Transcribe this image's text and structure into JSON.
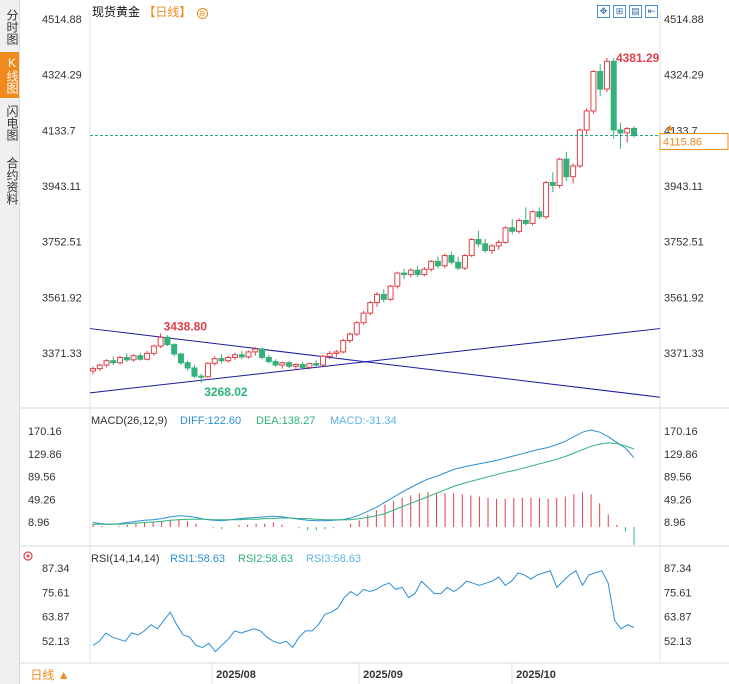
{
  "sidebar": {
    "tabs": [
      {
        "label": "分时图",
        "active": false
      },
      {
        "label": "K线图",
        "active": true
      },
      {
        "label": "闪电图",
        "active": false
      },
      {
        "label": "合约资料",
        "active": false
      }
    ]
  },
  "header": {
    "title": "现货黄金",
    "period": "【日线】",
    "toggle": "⊖"
  },
  "toolbar": {
    "icons": [
      "expand-icon",
      "split-view-icon",
      "chart-mode-icon",
      "exit-icon"
    ]
  },
  "bottom": {
    "period_label": "日线 ▲"
  },
  "colors": {
    "up": "#e0404a",
    "down": "#34b07a",
    "trendline": "#1a1aa0",
    "accent": "#f08a1c",
    "diff": "#2a8fd6",
    "dea": "#2db37a",
    "rsi": "#2a8fd6"
  },
  "chart_data": [
    {
      "type": "candlestick",
      "title": "现货黄金",
      "ylim": [
        3180,
        4514.88
      ],
      "y_ticks": [
        4514.88,
        4324.29,
        4133.7,
        3943.11,
        3752.51,
        3561.92,
        3371.33
      ],
      "x_ticks": [
        "2025/08",
        "2025/09",
        "2025/10"
      ],
      "last_price": 4115.86,
      "annotations": [
        {
          "label": "4381.29",
          "value": 4381.29
        },
        {
          "label": "3438.80",
          "value": 3438.8
        },
        {
          "label": "3268.02",
          "value": 3268.02
        }
      ],
      "trendlines": [
        {
          "from": 3455,
          "to": 3220
        },
        {
          "from": 3235,
          "to": 3455
        }
      ],
      "candles": [
        [
          3310,
          3325,
          3298,
          3318
        ],
        [
          3318,
          3335,
          3310,
          3330
        ],
        [
          3330,
          3350,
          3322,
          3345
        ],
        [
          3345,
          3360,
          3330,
          3338
        ],
        [
          3338,
          3362,
          3332,
          3356
        ],
        [
          3356,
          3370,
          3340,
          3348
        ],
        [
          3348,
          3368,
          3342,
          3362
        ],
        [
          3362,
          3372,
          3345,
          3350
        ],
        [
          3350,
          3378,
          3346,
          3370
        ],
        [
          3370,
          3400,
          3362,
          3395
        ],
        [
          3395,
          3438.8,
          3388,
          3425
        ],
        [
          3425,
          3432,
          3395,
          3400
        ],
        [
          3400,
          3405,
          3360,
          3368
        ],
        [
          3368,
          3372,
          3330,
          3338
        ],
        [
          3338,
          3345,
          3310,
          3320
        ],
        [
          3320,
          3330,
          3285,
          3292
        ],
        [
          3292,
          3300,
          3268.02,
          3290
        ],
        [
          3290,
          3340,
          3286,
          3336
        ],
        [
          3336,
          3360,
          3328,
          3352
        ],
        [
          3352,
          3368,
          3335,
          3345
        ],
        [
          3345,
          3362,
          3338,
          3356
        ],
        [
          3356,
          3372,
          3348,
          3365
        ],
        [
          3365,
          3378,
          3350,
          3358
        ],
        [
          3358,
          3380,
          3352,
          3375
        ],
        [
          3375,
          3392,
          3362,
          3385
        ],
        [
          3385,
          3390,
          3350,
          3356
        ],
        [
          3356,
          3366,
          3335,
          3342
        ],
        [
          3342,
          3350,
          3325,
          3330
        ],
        [
          3330,
          3342,
          3318,
          3338
        ],
        [
          3338,
          3344,
          3320,
          3326
        ],
        [
          3326,
          3336,
          3314,
          3332
        ],
        [
          3332,
          3340,
          3318,
          3322
        ],
        [
          3322,
          3338,
          3315,
          3335
        ],
        [
          3335,
          3348,
          3325,
          3330
        ],
        [
          3330,
          3365,
          3326,
          3360
        ],
        [
          3360,
          3378,
          3350,
          3370
        ],
        [
          3370,
          3382,
          3358,
          3375
        ],
        [
          3375,
          3420,
          3370,
          3414
        ],
        [
          3414,
          3442,
          3405,
          3436
        ],
        [
          3436,
          3480,
          3430,
          3475
        ],
        [
          3475,
          3515,
          3468,
          3508
        ],
        [
          3508,
          3550,
          3500,
          3544
        ],
        [
          3544,
          3580,
          3530,
          3572
        ],
        [
          3572,
          3590,
          3545,
          3555
        ],
        [
          3555,
          3605,
          3550,
          3600
        ],
        [
          3600,
          3650,
          3592,
          3645
        ],
        [
          3645,
          3660,
          3625,
          3640
        ],
        [
          3640,
          3662,
          3630,
          3655
        ],
        [
          3655,
          3670,
          3632,
          3640
        ],
        [
          3640,
          3665,
          3634,
          3658
        ],
        [
          3658,
          3690,
          3650,
          3685
        ],
        [
          3685,
          3702,
          3660,
          3670
        ],
        [
          3670,
          3712,
          3662,
          3705
        ],
        [
          3705,
          3718,
          3675,
          3682
        ],
        [
          3682,
          3700,
          3655,
          3662
        ],
        [
          3662,
          3710,
          3655,
          3705
        ],
        [
          3705,
          3765,
          3700,
          3760
        ],
        [
          3760,
          3790,
          3735,
          3745
        ],
        [
          3745,
          3762,
          3715,
          3722
        ],
        [
          3722,
          3745,
          3710,
          3738
        ],
        [
          3738,
          3758,
          3725,
          3750
        ],
        [
          3750,
          3805,
          3745,
          3800
        ],
        [
          3800,
          3830,
          3778,
          3788
        ],
        [
          3788,
          3832,
          3780,
          3825
        ],
        [
          3825,
          3870,
          3808,
          3815
        ],
        [
          3815,
          3860,
          3808,
          3855
        ],
        [
          3855,
          3870,
          3830,
          3838
        ],
        [
          3838,
          3960,
          3830,
          3955
        ],
        [
          3955,
          3990,
          3922,
          3945
        ],
        [
          3945,
          4040,
          3935,
          4035
        ],
        [
          4035,
          4060,
          3960,
          3975
        ],
        [
          3975,
          4020,
          3952,
          4012
        ],
        [
          4012,
          4140,
          4005,
          4135
        ],
        [
          4135,
          4210,
          4120,
          4200
        ],
        [
          4200,
          4340,
          4190,
          4335
        ],
        [
          4335,
          4360,
          4250,
          4275
        ],
        [
          4275,
          4381.29,
          4265,
          4370
        ],
        [
          4370,
          4381,
          4105,
          4135
        ],
        [
          4135,
          4160,
          4070,
          4125
        ],
        [
          4125,
          4145,
          4092,
          4140
        ],
        [
          4140,
          4148,
          4110,
          4115.86
        ]
      ]
    },
    {
      "type": "line",
      "title": "MACD(26,12,9)",
      "ylim": [
        -10,
        180
      ],
      "y_ticks": [
        170.16,
        129.86,
        89.56,
        49.26,
        8.96
      ],
      "series": [
        {
          "name": "DIFF",
          "value_label": "DIFF:122.60",
          "values": [
            8,
            6,
            5,
            6,
            8,
            10,
            12,
            13,
            15,
            18,
            20,
            19,
            17,
            14,
            12,
            11,
            13,
            15,
            16,
            17,
            18,
            19,
            18,
            16,
            14,
            12,
            11,
            11,
            12,
            13,
            16,
            21,
            28,
            35,
            44,
            53,
            62,
            70,
            78,
            85,
            90,
            96,
            102,
            106,
            109,
            112,
            115,
            118,
            122,
            126,
            130,
            134,
            138,
            141,
            146,
            152,
            160,
            168,
            172,
            168,
            160,
            150,
            140,
            122.6
          ]
        },
        {
          "name": "DEA",
          "value_label": "DEA:138.27",
          "values": [
            5,
            5,
            5,
            5,
            6,
            7,
            8,
            9,
            10,
            12,
            13,
            14,
            14,
            14,
            13,
            13,
            13,
            13,
            14,
            14,
            15,
            15,
            16,
            16,
            15,
            15,
            14,
            13,
            13,
            13,
            13,
            15,
            17,
            20,
            24,
            30,
            36,
            42,
            48,
            54,
            60,
            66,
            72,
            77,
            81,
            85,
            89,
            93,
            97,
            100,
            104,
            108,
            112,
            116,
            120,
            125,
            131,
            137,
            143,
            147,
            149,
            148,
            144,
            138.27
          ]
        },
        {
          "name": "MACD",
          "value_label": "MACD:-31.34",
          "values": [
            6,
            2,
            0,
            2,
            4,
            6,
            8,
            8,
            10,
            12,
            14,
            10,
            6,
            0,
            -2,
            -4,
            0,
            4,
            4,
            6,
            6,
            8,
            4,
            0,
            -2,
            -6,
            -6,
            -4,
            -2,
            0,
            6,
            12,
            22,
            30,
            40,
            46,
            52,
            56,
            60,
            62,
            60,
            60,
            60,
            58,
            56,
            54,
            52,
            50,
            50,
            52,
            52,
            52,
            52,
            50,
            52,
            54,
            58,
            62,
            58,
            42,
            22,
            4,
            -8,
            -31.34
          ]
        }
      ]
    },
    {
      "type": "line",
      "title": "RSI(14,14,14)",
      "ylim": [
        44,
        90
      ],
      "y_ticks": [
        87.34,
        75.61,
        63.87,
        52.13
      ],
      "series": [
        {
          "name": "RSI1",
          "value_label": "RSI1:58.63",
          "values": [
            50,
            52,
            56,
            54,
            53,
            52,
            56,
            55,
            57,
            60,
            58,
            62,
            66,
            60,
            55,
            54,
            50,
            49,
            51,
            47,
            50,
            53,
            57,
            56,
            57,
            58,
            57,
            54,
            52,
            51,
            52,
            49,
            54,
            57,
            57,
            60,
            65,
            66,
            68,
            73,
            76,
            74,
            77,
            76,
            77,
            79,
            80,
            77,
            78,
            73,
            75,
            81,
            78,
            75,
            75,
            78,
            76,
            78,
            81,
            80,
            79,
            80,
            81,
            83,
            79,
            81,
            85,
            84,
            82,
            84,
            85,
            86,
            78,
            81,
            84,
            86,
            79,
            84,
            85,
            86,
            80,
            62,
            58,
            60,
            58.63
          ]
        },
        {
          "name": "RSI2",
          "value_label": "RSI2:58.63",
          "values": []
        },
        {
          "name": "RSI3",
          "value_label": "RSI3:58.63",
          "values": []
        }
      ]
    }
  ]
}
